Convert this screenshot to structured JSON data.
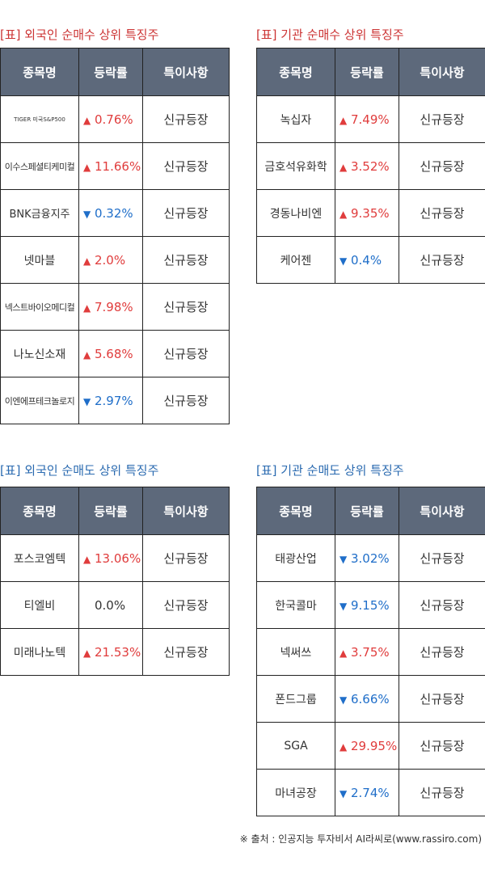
{
  "panels": [
    {
      "title": "[표] 외국인 순매수 상위 특징주",
      "headers": [
        "종목명",
        "등락률",
        "특이사항"
      ],
      "rows": [
        {
          "name": "TIGER 미국S&P500",
          "dir": "up",
          "change": "0.76%",
          "note": "신규등장"
        },
        {
          "name": "이수스페셜티케미컬",
          "dir": "up",
          "change": "11.66%",
          "note": "신규등장"
        },
        {
          "name": "BNK금융지주",
          "dir": "down",
          "change": "0.32%",
          "note": "신규등장"
        },
        {
          "name": "넷마블",
          "dir": "up",
          "change": "2.0%",
          "note": "신규등장"
        },
        {
          "name": "넥스트바이오메디컬",
          "dir": "up",
          "change": "7.98%",
          "note": "신규등장"
        },
        {
          "name": "나노신소재",
          "dir": "up",
          "change": "5.68%",
          "note": "신규등장"
        },
        {
          "name": "이엔에프테크놀로지",
          "dir": "down",
          "change": "2.97%",
          "note": "신규등장"
        }
      ]
    },
    {
      "title": "[표] 기관 순매수 상위 특징주",
      "headers": [
        "종목명",
        "등락률",
        "특이사항"
      ],
      "rows": [
        {
          "name": "녹십자",
          "dir": "up",
          "change": "7.49%",
          "note": "신규등장"
        },
        {
          "name": "금호석유화학",
          "dir": "up",
          "change": "3.52%",
          "note": "신규등장"
        },
        {
          "name": "경동나비엔",
          "dir": "up",
          "change": "9.35%",
          "note": "신규등장"
        },
        {
          "name": "케어젠",
          "dir": "down",
          "change": "0.4%",
          "note": "신규등장"
        }
      ]
    },
    {
      "title": "[표] 외국인 순매도 상위 특징주",
      "headers": [
        "종목명",
        "등락률",
        "특이사항"
      ],
      "rows": [
        {
          "name": "포스코엠텍",
          "dir": "up",
          "change": "13.06%",
          "note": "신규등장"
        },
        {
          "name": "티엘비",
          "dir": "flat",
          "change": "0.0%",
          "note": "신규등장"
        },
        {
          "name": "미래나노텍",
          "dir": "up",
          "change": "21.53%",
          "note": "신규등장"
        }
      ]
    },
    {
      "title": "[표] 기관 순매도 상위 특징주",
      "headers": [
        "종목명",
        "등락률",
        "특이사항"
      ],
      "rows": [
        {
          "name": "태광산업",
          "dir": "down",
          "change": "3.02%",
          "note": "신규등장"
        },
        {
          "name": "한국콜마",
          "dir": "down",
          "change": "9.15%",
          "note": "신규등장"
        },
        {
          "name": "넥써쓰",
          "dir": "up",
          "change": "3.75%",
          "note": "신규등장"
        },
        {
          "name": "폰드그룹",
          "dir": "down",
          "change": "6.66%",
          "note": "신규등장"
        },
        {
          "name": "SGA",
          "dir": "up",
          "change": "29.95%",
          "note": "신규등장"
        },
        {
          "name": "마녀공장",
          "dir": "down",
          "change": "2.74%",
          "note": "신규등장"
        }
      ]
    }
  ],
  "footer": "※ 출처 : 인공지능 투자비서 AI라씨로(www.rassiro.com)"
}
